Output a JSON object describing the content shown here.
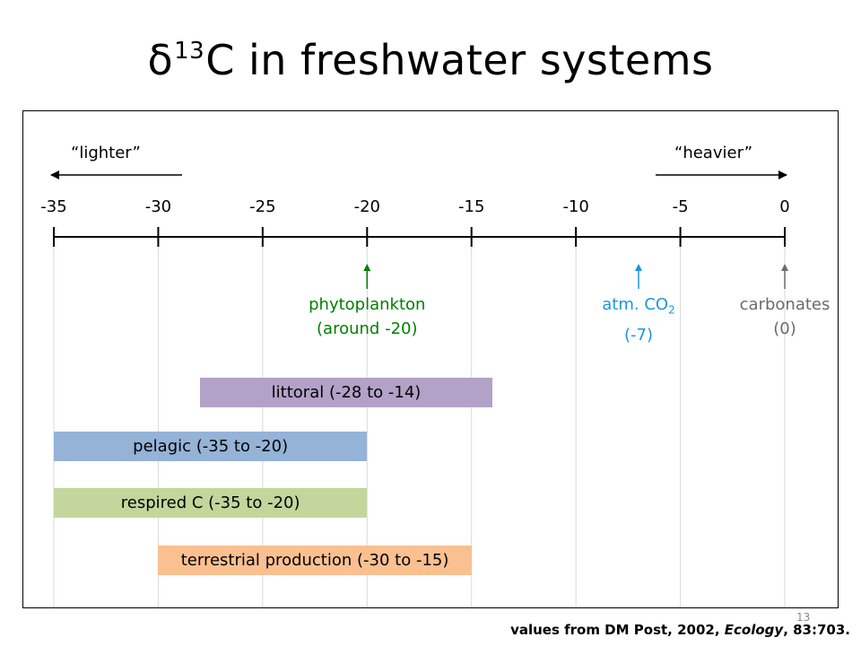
{
  "title": {
    "prefix": "δ",
    "superscript": "13",
    "suffix": "C in freshwater systems"
  },
  "direction_labels": {
    "left": "“lighter”",
    "right": "“heavier”"
  },
  "colors": {
    "axis": "#000000",
    "gridline": "#d9d9d9",
    "phytoplankton": "#008000",
    "atm_co2": "#1a96e0",
    "carbonates": "#6b6b6b",
    "littoral": "#b3a2c7",
    "pelagic": "#95b3d7",
    "respired": "#c3d69b",
    "terrestrial": "#fac090"
  },
  "chart_data": {
    "type": "range-bar",
    "x_ticks": [
      -35,
      -30,
      -25,
      -20,
      -15,
      -10,
      -5,
      0
    ],
    "x_tick_labels": [
      "-35",
      "-30",
      "-25",
      "-20",
      "-15",
      "-10",
      "-5",
      "0"
    ],
    "xlim": [
      -35,
      0
    ],
    "grid": true,
    "markers": [
      {
        "key": "phytoplankton",
        "value": -20,
        "line1": "phytoplankton",
        "line2": "(around -20)"
      },
      {
        "key": "atm_co2",
        "value": -7,
        "line1_prefix": "atm. CO",
        "line1_sub": "2",
        "line2": "(-7)"
      },
      {
        "key": "carbonates",
        "value": 0,
        "line1": "carbonates",
        "line2": "(0)"
      }
    ],
    "ranges": [
      {
        "key": "littoral",
        "label": "littoral (-28 to -14)",
        "from": -28,
        "to": -14
      },
      {
        "key": "pelagic",
        "label": "pelagic (-35 to -20)",
        "from": -35,
        "to": -20
      },
      {
        "key": "respired",
        "label": "respired C (-35 to -20)",
        "from": -35,
        "to": -20
      },
      {
        "key": "terrestrial",
        "label": "terrestrial production (-30 to -15)",
        "from": -30,
        "to": -15
      }
    ]
  },
  "page_number": "13",
  "footer": {
    "prefix": "values from DM Post, 2002, ",
    "journal": "Ecology",
    "suffix": ", 83:703."
  }
}
